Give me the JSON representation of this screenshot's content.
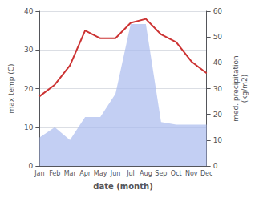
{
  "chart_data": {
    "type": "line",
    "xlabel": "date (month)",
    "ylabel": "max temp (C)",
    "y2label": "med. precipitation\n(kg/m2)",
    "categories": [
      "Jan",
      "Feb",
      "Mar",
      "Apr",
      "May",
      "Jun",
      "Jul",
      "Aug",
      "Sep",
      "Oct",
      "Nov",
      "Dec"
    ],
    "series": [
      {
        "type": "area",
        "color": "#aabbee",
        "axis": "y2",
        "values": [
          11,
          15,
          10,
          19,
          19,
          28,
          55,
          55,
          17,
          16,
          16,
          16
        ]
      },
      {
        "type": "line",
        "color": "#cc3333",
        "values": [
          18,
          21,
          26,
          35,
          33,
          33,
          37,
          38,
          34,
          32,
          27,
          24
        ]
      }
    ],
    "ylim": [
      0,
      40
    ],
    "yticks": [
      0,
      10,
      20,
      30,
      40
    ],
    "y2lim": [
      0,
      60
    ],
    "y2ticks": [
      0,
      10,
      20,
      30,
      40,
      50,
      60
    ],
    "grid": true
  }
}
